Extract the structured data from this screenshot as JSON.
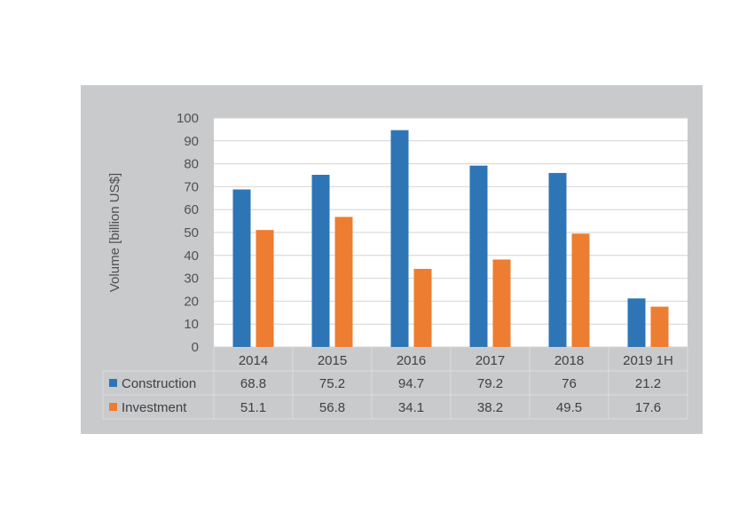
{
  "chart_data": {
    "type": "bar",
    "title": "",
    "xlabel": "",
    "ylabel": "Volume [billion US$]",
    "categories": [
      "2014",
      "2015",
      "2016",
      "2017",
      "2018",
      "2019 1H"
    ],
    "ylim": [
      0,
      100
    ],
    "yticks": [
      "0",
      "10",
      "20",
      "30",
      "40",
      "50",
      "60",
      "70",
      "80",
      "90",
      "100"
    ],
    "grid": true,
    "legend_placement": "data-table",
    "series": [
      {
        "name": "Construction",
        "color": "#2e75b6",
        "values": [
          68.8,
          75.2,
          94.7,
          79.2,
          76,
          21.2
        ],
        "labels": [
          "68.8",
          "75.2",
          "94.7",
          "79.2",
          "76",
          "21.2"
        ]
      },
      {
        "name": "Investment",
        "color": "#ed7d31",
        "values": [
          51.1,
          56.8,
          34.1,
          38.2,
          49.5,
          17.6
        ],
        "labels": [
          "51.1",
          "56.8",
          "34.1",
          "38.2",
          "49.5",
          "17.6"
        ]
      }
    ]
  }
}
